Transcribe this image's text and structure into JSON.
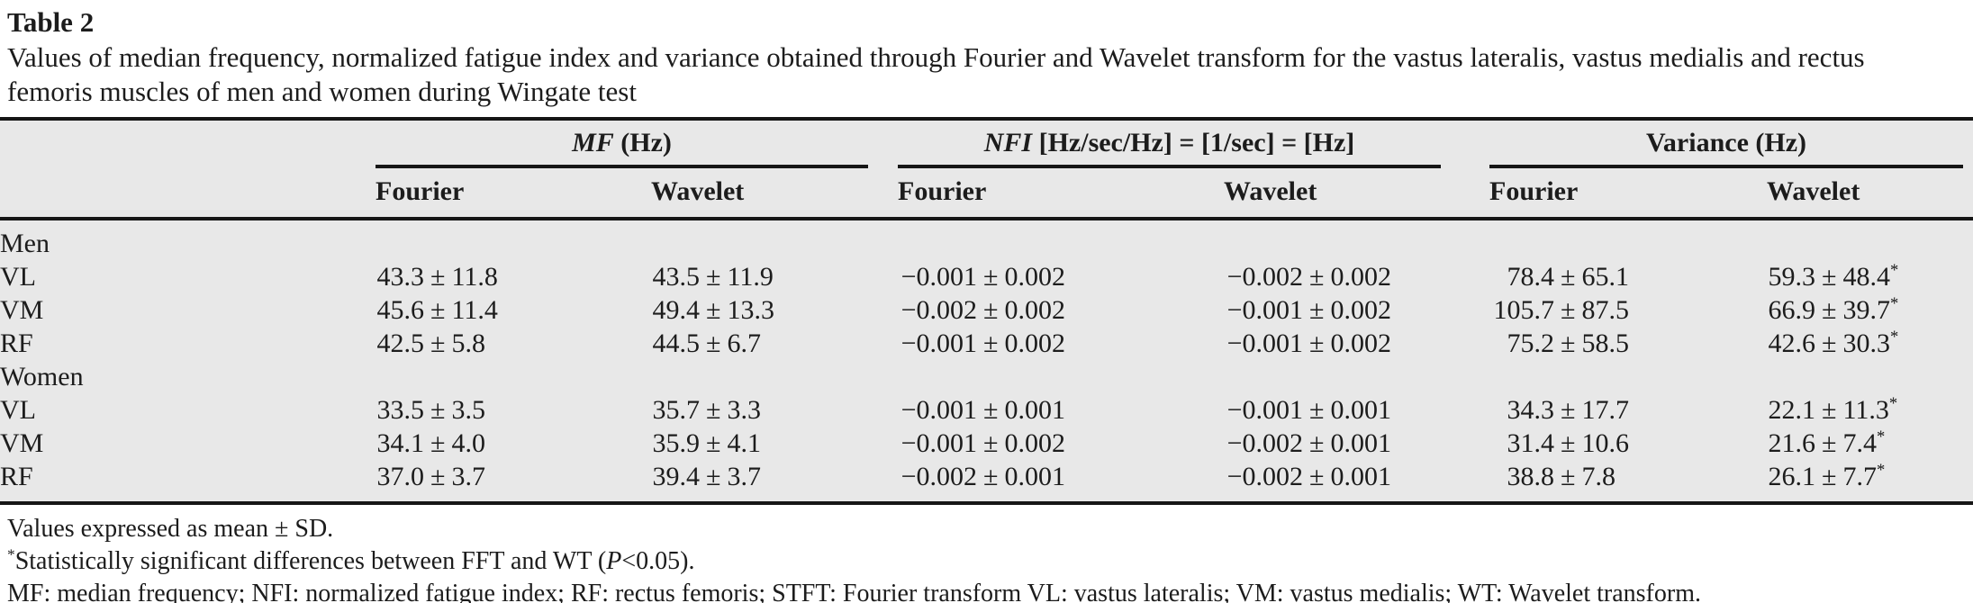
{
  "page": {
    "title": "Table 2",
    "caption": "Values of median frequency, normalized fatigue index and variance obtained through Fourier and Wavelet transform for the vastus lateralis, vastus medialis and rectus femoris muscles of men and women during Wingate test"
  },
  "table": {
    "groups": [
      {
        "em": "MF",
        "rest": " (Hz)"
      },
      {
        "em": "NFI",
        "rest": " [Hz/sec/Hz] = [1/sec] = [Hz]"
      },
      {
        "em": "",
        "rest": "Variance (Hz)"
      }
    ],
    "subheaders": [
      "Fourier",
      "Wavelet",
      "Fourier",
      "Wavelet",
      "Fourier",
      "Wavelet"
    ],
    "rows": [
      {
        "type": "section",
        "label": "Men"
      },
      {
        "type": "data",
        "label": "VL",
        "cells": [
          "43.3 ± 11.8",
          "43.5 ± 11.9",
          "−0.001 ± 0.002",
          "−0.002 ± 0.002",
          "78.4 ± 65.1",
          "59.3 ± 48.4*"
        ]
      },
      {
        "type": "data",
        "label": "VM",
        "cells": [
          "45.6 ± 11.4",
          "49.4 ± 13.3",
          "−0.002 ± 0.002",
          "−0.001 ± 0.002",
          "105.7 ± 87.5",
          "66.9 ± 39.7*"
        ]
      },
      {
        "type": "data",
        "label": "RF",
        "cells": [
          "42.5 ± 5.8",
          "44.5 ± 6.7",
          "−0.001 ± 0.002",
          "−0.001 ± 0.002",
          "75.2 ± 58.5",
          "42.6 ± 30.3*"
        ]
      },
      {
        "type": "section",
        "label": "Women"
      },
      {
        "type": "data",
        "label": "VL",
        "cells": [
          "33.5 ± 3.5",
          "35.7 ± 3.3",
          "−0.001 ± 0.001",
          "−0.001 ± 0.001",
          "34.3 ± 17.7",
          "22.1 ± 11.3*"
        ]
      },
      {
        "type": "data",
        "label": "VM",
        "cells": [
          "34.1 ± 4.0",
          "35.9 ± 4.1",
          "−0.001 ± 0.002",
          "−0.002 ± 0.001",
          "31.4 ± 10.6",
          "21.6 ± 7.4*"
        ]
      },
      {
        "type": "data",
        "label": "RF",
        "cells": [
          "37.0 ± 3.7",
          "39.4 ± 3.7",
          "−0.002 ± 0.001",
          "−0.002 ± 0.001",
          "38.8 ± 7.8",
          "26.1 ± 7.7*"
        ]
      }
    ]
  },
  "footnotes": {
    "line1": "Values expressed as mean ± SD.",
    "line2_marker": "*",
    "line2_prefix": "Statistically significant differences between FFT and WT (",
    "line2_italic": "P",
    "line2_suffix": "<0.05).",
    "line3": "MF: median frequency; NFI: normalized fatigue index; RF: rectus femoris; STFT: Fourier transform VL: vastus lateralis; VM: vastus medialis; WT: Wavelet transform."
  },
  "colors": {
    "table_background": "#e8e8e8",
    "rule": "#161616",
    "text": "#1c1c1c",
    "page_background": "#ffffff"
  }
}
